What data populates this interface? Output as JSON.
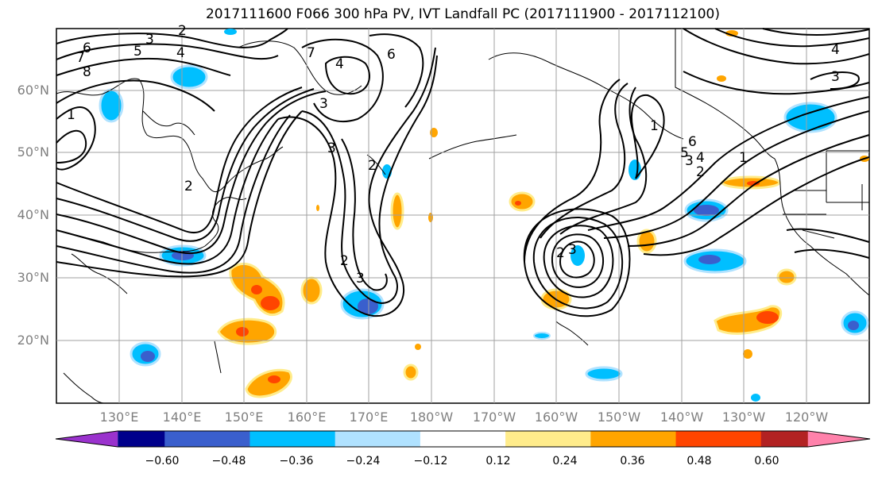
{
  "title": "2017111600 F066 300 hPa PV, IVT Landfall PC (2017111900 - 2017112100)",
  "lat_labels": [
    "60°N",
    "50°N",
    "40°N",
    "30°N",
    "20°N"
  ],
  "lon_labels": [
    "130°E",
    "140°E",
    "150°E",
    "160°E",
    "170°E",
    "180°W",
    "170°W",
    "160°W",
    "150°W",
    "140°W",
    "130°W",
    "120°W"
  ],
  "colorbar": {
    "ticks": [
      "−0.60",
      "−0.48",
      "−0.36",
      "−0.24",
      "−0.12",
      "0.12",
      "0.24",
      "0.36",
      "0.48",
      "0.60"
    ],
    "colors": [
      "#9a32cd",
      "#00008b",
      "#3a5fcd",
      "#00bfff",
      "#b0e2ff",
      "#ffffff",
      "#ffec8b",
      "#ffa500",
      "#ff4500",
      "#b22222",
      "#ff82ab"
    ]
  },
  "contour_labels": [
    "2",
    "3",
    "4",
    "5",
    "6",
    "7",
    "8",
    "1",
    "2",
    "3",
    "4",
    "6",
    "7",
    "1",
    "2",
    "3",
    "4",
    "5",
    "6",
    "4",
    "3",
    "3",
    "2",
    "3",
    "2",
    "1",
    "2",
    "3"
  ],
  "colors": {
    "contour": "#000000",
    "grid": "#a0a0a0",
    "coast": "#000000",
    "label": "#7f7f7f"
  }
}
